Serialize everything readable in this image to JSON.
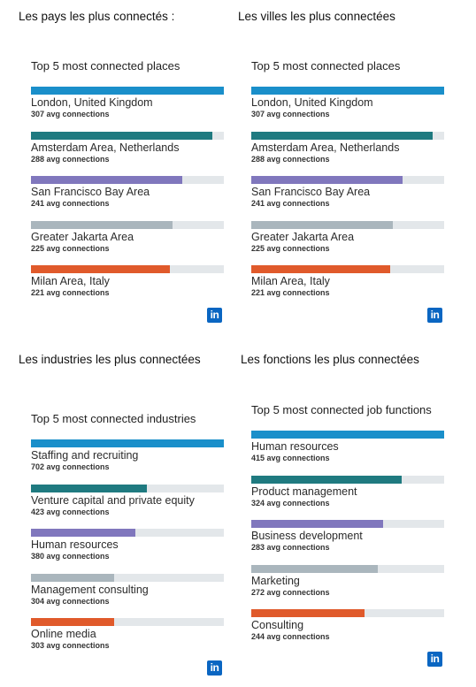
{
  "headings": {
    "countries": "Les pays les plus connectés :",
    "cities": "Les villes les plus connectées",
    "industries": "Les industries les plus connectées",
    "functions": "Les fonctions les plus connectées"
  },
  "logo_text": "in",
  "colors": {
    "track": "#e3e7ea",
    "bars": [
      "#1a8fca",
      "#1f7a80",
      "#8077bd",
      "#aab6bd",
      "#e05a2b"
    ]
  },
  "chart_data": [
    {
      "type": "bar",
      "title": "Top 5 most connected places",
      "categories": [
        "London, United Kingdom",
        "Amsterdam Area, Netherlands",
        "San Francisco Bay Area",
        "Greater Jakarta Area",
        "Milan Area, Italy"
      ],
      "values": [
        307,
        288,
        241,
        225,
        221
      ],
      "value_labels": [
        "307 avg connections",
        "288 avg connections",
        "241 avg connections",
        "225 avg connections",
        "221 avg connections"
      ],
      "xlim": [
        0,
        307
      ]
    },
    {
      "type": "bar",
      "title": "Top 5 most connected places",
      "categories": [
        "London, United Kingdom",
        "Amsterdam Area, Netherlands",
        "San Francisco Bay Area",
        "Greater Jakarta Area",
        "Milan Area, Italy"
      ],
      "values": [
        307,
        288,
        241,
        225,
        221
      ],
      "value_labels": [
        "307 avg connections",
        "288 avg connections",
        "241 avg connections",
        "225 avg connections",
        "221 avg connections"
      ],
      "xlim": [
        0,
        307
      ]
    },
    {
      "type": "bar",
      "title": "Top 5 most connected industries",
      "categories": [
        "Staffing and recruiting",
        "Venture capital and private equity",
        "Human resources",
        "Management consulting",
        "Online media"
      ],
      "values": [
        702,
        423,
        380,
        304,
        303
      ],
      "value_labels": [
        "702 avg connections",
        "423 avg connections",
        "380 avg connections",
        "304 avg connections",
        "303 avg connections"
      ],
      "xlim": [
        0,
        702
      ]
    },
    {
      "type": "bar",
      "title": "Top 5 most connected job functions",
      "categories": [
        "Human resources",
        "Product management",
        "Business development",
        "Marketing",
        "Consulting"
      ],
      "values": [
        415,
        324,
        283,
        272,
        244
      ],
      "value_labels": [
        "415 avg connections",
        "324 avg connections",
        "283 avg connections",
        "272 avg connections",
        "244 avg connections"
      ],
      "xlim": [
        0,
        415
      ]
    }
  ]
}
